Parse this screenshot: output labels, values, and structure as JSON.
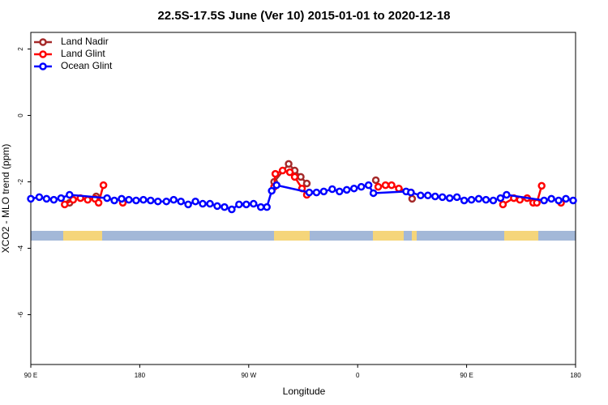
{
  "chart_data": {
    "type": "line",
    "title": "22.5S-17.5S June (Ver 10)   2015-01-01 to 2020-12-18",
    "x_label": "Longitude",
    "y_label": "XCO2 - MLO trend (ppm)",
    "xlim": [
      90,
      540
    ],
    "ylim": [
      -7.5,
      2.5
    ],
    "xticks": [
      {
        "value": 90,
        "label": "90 E"
      },
      180,
      {
        "value": 270,
        "label": "90 W"
      },
      {
        "value": 360,
        "label": "0"
      },
      {
        "value": 450,
        "label": "90 E"
      },
      {
        "value": 540,
        "label": "180"
      }
    ],
    "yticks": [
      -6,
      -4,
      -2,
      0,
      2
    ],
    "legend": "top-left",
    "series": [
      {
        "name": "Land Nadir",
        "color": "#a52a2a",
        "x": [
          122,
          null,
          144,
          null,
          291,
          303,
          308,
          313,
          318,
          null,
          375,
          null,
          405
        ],
        "values": [
          -2.63,
          null,
          -2.44,
          null,
          -2.0,
          -1.46,
          -1.66,
          -1.85,
          -2.05,
          null,
          -1.95,
          null,
          -2.51
        ]
      },
      {
        "name": "Land Glint",
        "color": "#ff0000",
        "x": [
          118,
          125,
          131,
          137,
          143,
          146,
          150,
          null,
          166,
          null,
          291,
          292,
          298,
          304,
          308,
          314,
          318,
          null,
          377,
          383,
          388,
          394,
          404,
          null,
          480,
          489,
          494,
          500,
          505,
          508,
          512,
          null,
          528
        ],
        "values": [
          -2.68,
          -2.54,
          -2.49,
          -2.54,
          -2.51,
          -2.63,
          -2.1,
          null,
          -2.63,
          null,
          -2.15,
          -1.76,
          -1.66,
          -1.71,
          -1.85,
          -2.2,
          -2.39,
          null,
          -2.15,
          -2.1,
          -2.1,
          -2.2,
          -2.32,
          null,
          -2.68,
          -2.49,
          -2.54,
          -2.49,
          -2.63,
          -2.63,
          -2.12,
          null,
          -2.63
        ]
      },
      {
        "name": "Ocean Glint",
        "color": "#0000ff",
        "x": [
          90,
          97,
          103,
          109,
          115,
          122,
          153,
          159,
          165,
          171,
          177,
          183,
          189,
          195,
          202,
          208,
          214,
          220,
          226,
          232,
          238,
          244,
          250,
          256,
          262,
          268,
          274,
          280,
          285,
          289,
          293,
          320,
          326,
          332,
          339,
          345,
          351,
          357,
          363,
          369,
          373,
          400,
          404,
          412,
          418,
          424,
          430,
          436,
          442,
          448,
          454,
          460,
          466,
          472,
          478,
          483,
          514,
          520,
          526,
          532,
          538
        ],
        "values": [
          -2.51,
          -2.46,
          -2.51,
          -2.54,
          -2.49,
          -2.39,
          -2.49,
          -2.56,
          -2.51,
          -2.54,
          -2.56,
          -2.54,
          -2.56,
          -2.59,
          -2.59,
          -2.54,
          -2.59,
          -2.68,
          -2.59,
          -2.66,
          -2.66,
          -2.73,
          -2.76,
          -2.83,
          -2.68,
          -2.68,
          -2.66,
          -2.76,
          -2.76,
          -2.27,
          -2.1,
          -2.32,
          -2.32,
          -2.29,
          -2.22,
          -2.29,
          -2.24,
          -2.2,
          -2.15,
          -2.1,
          -2.34,
          -2.29,
          -2.32,
          -2.41,
          -2.41,
          -2.44,
          -2.46,
          -2.49,
          -2.46,
          -2.56,
          -2.54,
          -2.51,
          -2.54,
          -2.56,
          -2.49,
          -2.39,
          -2.56,
          -2.51,
          -2.56,
          -2.51,
          -2.56
        ]
      }
    ]
  }
}
